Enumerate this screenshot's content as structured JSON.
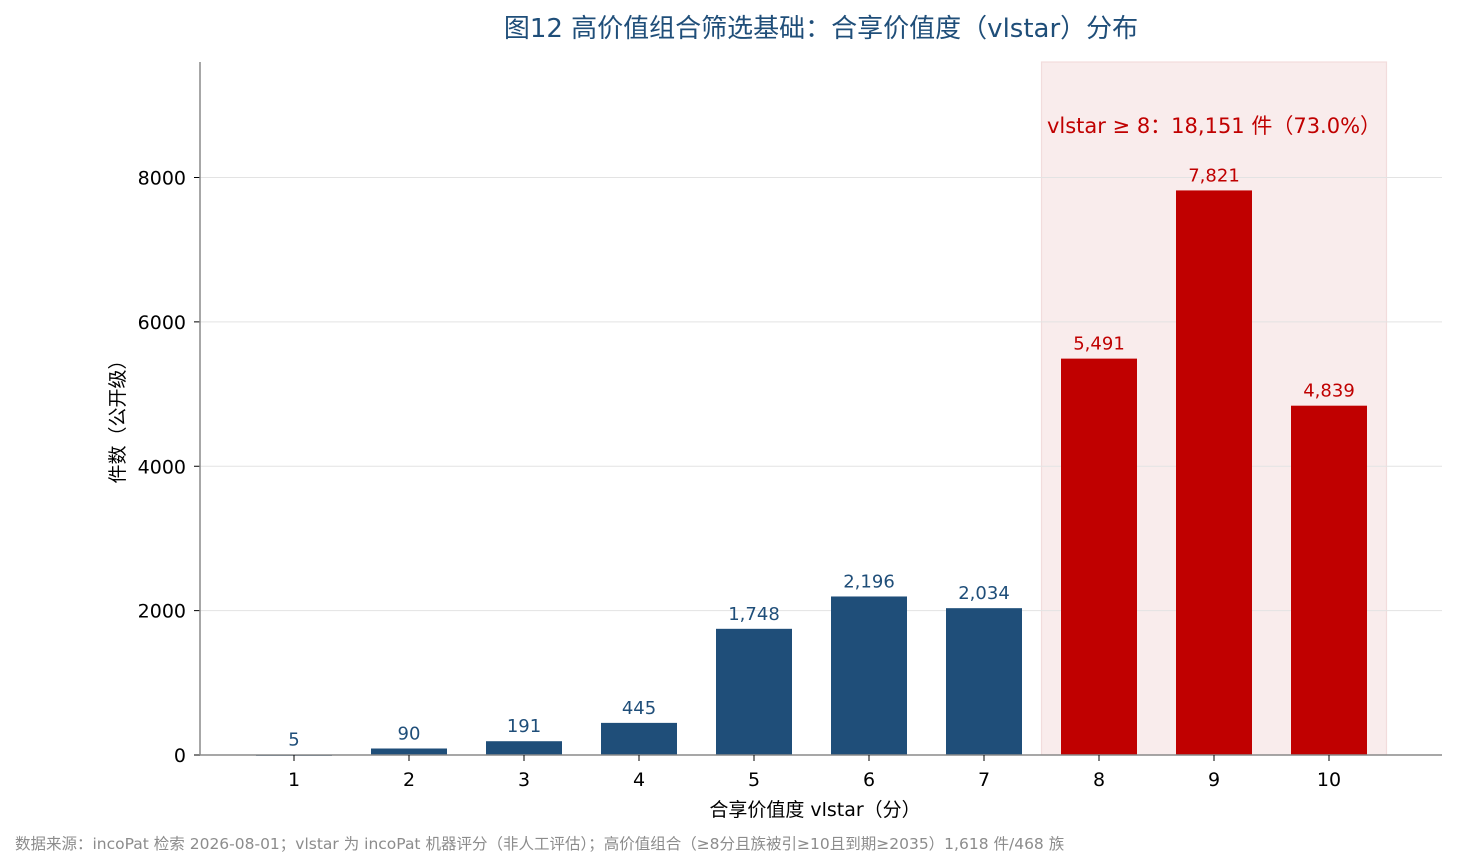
{
  "chart_data": {
    "type": "bar",
    "title": "图12  高价值组合筛选基础：合享价值度（vlstar）分布",
    "xlabel": "合享价值度 vlstar（分）",
    "ylabel": "件数（公开级）",
    "categories": [
      "1",
      "2",
      "3",
      "4",
      "5",
      "6",
      "7",
      "8",
      "9",
      "10"
    ],
    "values": [
      5,
      90,
      191,
      445,
      1748,
      2196,
      2034,
      5491,
      7821,
      4839
    ],
    "value_labels": [
      "5",
      "90",
      "191",
      "445",
      "1,748",
      "2,196",
      "2,034",
      "5,491",
      "7,821",
      "4,839"
    ],
    "ylim": [
      0,
      9600
    ],
    "yticks": [
      0,
      2000,
      4000,
      6000,
      8000
    ],
    "ytick_labels": [
      "0",
      "2000",
      "4000",
      "6000",
      "8000"
    ],
    "grid": "horizontal",
    "highlight": {
      "from_category": "8",
      "to_category": "10",
      "label": "vlstar ≥ 8：18,151 件（73.0%）"
    },
    "colors": {
      "normal": "#1f4e79",
      "highlight": "#c00000",
      "highlight_band": "#f9ecec",
      "grid": "#e3e3e3",
      "axis": "#8a8a8a"
    },
    "footnote": "数据来源：incoPat 检索 2026-08-01；vlstar 为 incoPat 机器评分（非人工评估）；高价值组合（≥8分且族被引≥10且到期≥2035）1,618 件/468 族"
  }
}
